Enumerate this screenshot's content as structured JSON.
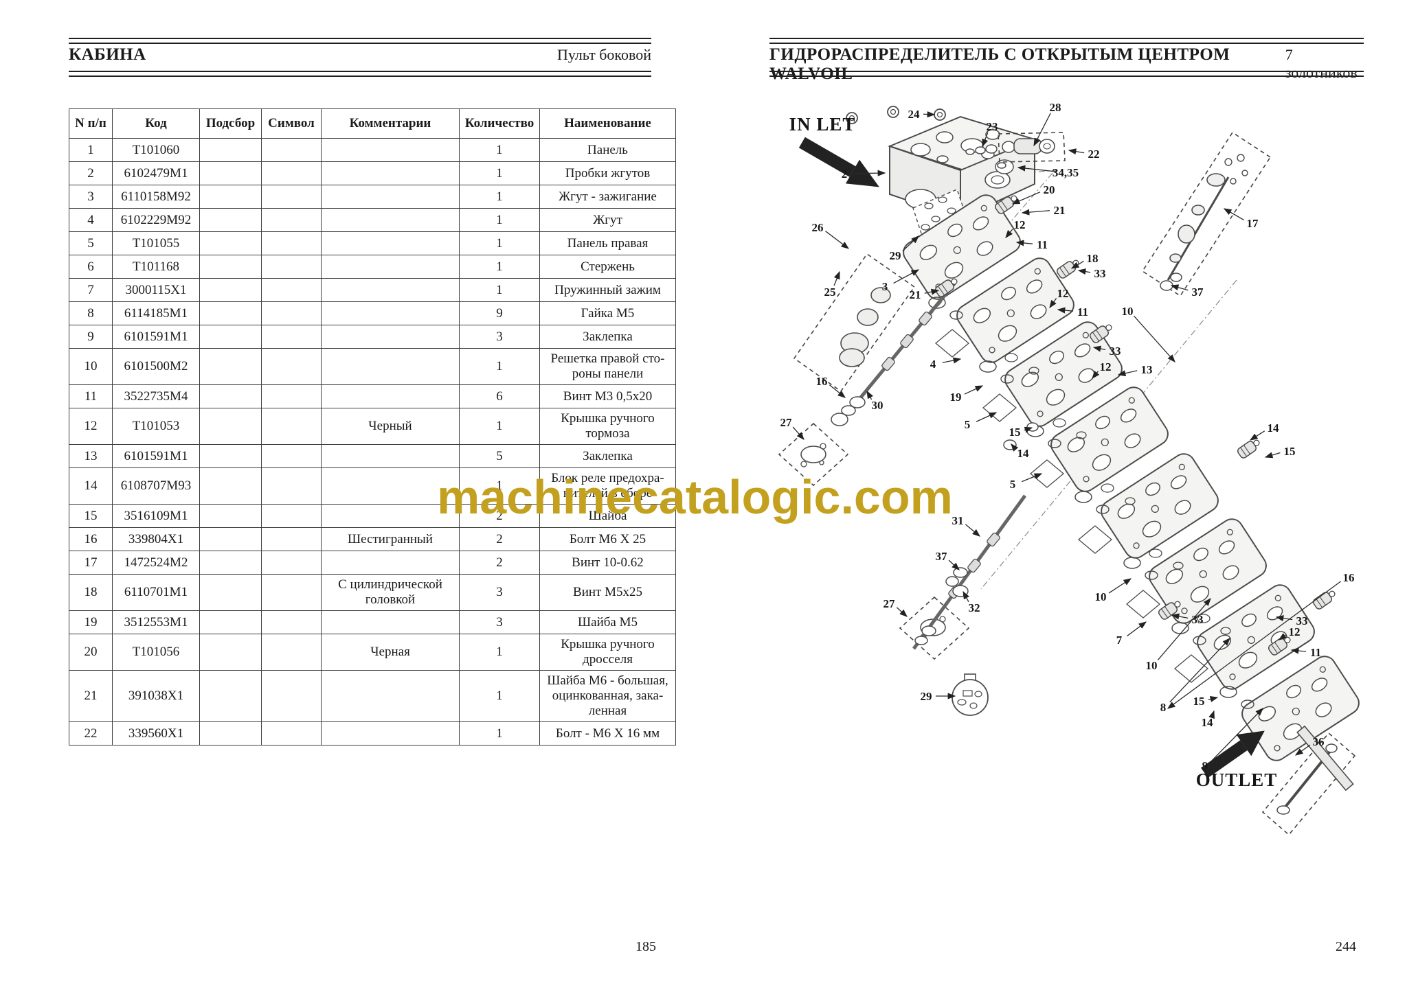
{
  "watermark": {
    "text": "machinecatalogic.com",
    "color": "#C3A01E"
  },
  "left_page": {
    "title": "КАБИНА",
    "subtitle": "Пульт боковой",
    "page_number": "185",
    "table": {
      "headers": [
        "N п/п",
        "Код",
        "Подсбор",
        "Символ",
        "Комментарии",
        "Количество",
        "Наименование"
      ],
      "rows": [
        [
          "1",
          "T101060",
          "",
          "",
          "",
          "1",
          "Панель"
        ],
        [
          "2",
          "6102479M1",
          "",
          "",
          "",
          "1",
          "Пробки жгутов"
        ],
        [
          "3",
          "6110158M92",
          "",
          "",
          "",
          "1",
          "Жгут - зажигание"
        ],
        [
          "4",
          "6102229M92",
          "",
          "",
          "",
          "1",
          "Жгут"
        ],
        [
          "5",
          "T101055",
          "",
          "",
          "",
          "1",
          "Панель правая"
        ],
        [
          "6",
          "T101168",
          "",
          "",
          "",
          "1",
          "Стержень"
        ],
        [
          "7",
          "3000115X1",
          "",
          "",
          "",
          "1",
          "Пружинный зажим"
        ],
        [
          "8",
          "6114185M1",
          "",
          "",
          "",
          "9",
          "Гайка М5"
        ],
        [
          "9",
          "6101591M1",
          "",
          "",
          "",
          "3",
          "Заклепка"
        ],
        [
          "10",
          "6101500M2",
          "",
          "",
          "",
          "1",
          "Решетка правой сто-\nроны панели"
        ],
        [
          "11",
          "3522735M4",
          "",
          "",
          "",
          "6",
          "Винт М3 0,5х20"
        ],
        [
          "12",
          "T101053",
          "",
          "",
          "Черный",
          "1",
          "Крышка ручного\nтормоза"
        ],
        [
          "13",
          "6101591M1",
          "",
          "",
          "",
          "5",
          "Заклепка"
        ],
        [
          "14",
          "6108707M93",
          "",
          "",
          "",
          "1",
          "Блок реле предохра-\nнителей в сборе"
        ],
        [
          "15",
          "3516109M1",
          "",
          "",
          "",
          "2",
          "Шайба"
        ],
        [
          "16",
          "339804X1",
          "",
          "",
          "Шестигранный",
          "2",
          "Болт М6 Х 25"
        ],
        [
          "17",
          "1472524M2",
          "",
          "",
          "",
          "2",
          "Винт 10-0.62"
        ],
        [
          "18",
          "6110701M1",
          "",
          "",
          "С цилиндрической\nголовкой",
          "3",
          "Винт М5х25"
        ],
        [
          "19",
          "3512553M1",
          "",
          "",
          "",
          "3",
          "Шайба М5"
        ],
        [
          "20",
          "T101056",
          "",
          "",
          "Черная",
          "1",
          "Крышка ручного\nдросселя"
        ],
        [
          "21",
          "391038X1",
          "",
          "",
          "",
          "1",
          "Шайба М6 - большая,\nоцинкованная, зака-\nленная"
        ],
        [
          "22",
          "339560X1",
          "",
          "",
          "",
          "1",
          "Болт - М6 Х 16 мм"
        ]
      ]
    }
  },
  "right_page": {
    "title": "ГИДРОРАСПРЕДЕЛИТЕЛЬ С ОТКРЫТЫМ ЦЕНТРОМ WALVOIL",
    "subtitle": "7 золотников",
    "page_number": "244",
    "diagram": {
      "inlet_label": "IN LET",
      "outlet_label": "OUTLET",
      "callouts": [
        [
          "24",
          1330,
          166,
          1360,
          167
        ],
        [
          "28",
          1536,
          156,
          1505,
          212
        ],
        [
          "23",
          1444,
          184,
          1430,
          213
        ],
        [
          "22",
          1592,
          224,
          1556,
          219
        ],
        [
          "34,35",
          1551,
          251,
          1482,
          244
        ],
        [
          "2",
          1229,
          253,
          1288,
          252
        ],
        [
          "20",
          1527,
          276,
          1474,
          297
        ],
        [
          "21",
          1542,
          306,
          1488,
          310
        ],
        [
          "26",
          1190,
          331,
          1235,
          362
        ],
        [
          "12",
          1484,
          327,
          1464,
          346
        ],
        [
          "11",
          1517,
          356,
          1480,
          353
        ],
        [
          "29",
          1303,
          372,
          1337,
          344
        ],
        [
          "18",
          1590,
          376,
          1560,
          391
        ],
        [
          "3",
          1288,
          417,
          1337,
          393
        ],
        [
          "25",
          1208,
          425,
          1222,
          396
        ],
        [
          "21",
          1332,
          429,
          1366,
          423
        ],
        [
          "12",
          1547,
          427,
          1528,
          448
        ],
        [
          "11",
          1576,
          454,
          1540,
          451
        ],
        [
          "17",
          1823,
          325,
          1782,
          304
        ],
        [
          "33",
          1601,
          398,
          1570,
          394
        ],
        [
          "37",
          1743,
          425,
          1705,
          416
        ],
        [
          "10",
          1641,
          453,
          1710,
          527
        ],
        [
          "13",
          1669,
          538,
          1628,
          546
        ],
        [
          "33",
          1623,
          511,
          1592,
          506
        ],
        [
          "12",
          1609,
          534,
          1590,
          551
        ],
        [
          "16",
          1196,
          555,
          1230,
          579
        ],
        [
          "30",
          1277,
          590,
          1262,
          570
        ],
        [
          "27",
          1144,
          615,
          1170,
          640
        ],
        [
          "4",
          1358,
          530,
          1398,
          523
        ],
        [
          "19",
          1391,
          578,
          1430,
          562
        ],
        [
          "5",
          1408,
          618,
          1450,
          601
        ],
        [
          "15",
          1477,
          629,
          1502,
          623
        ],
        [
          "14",
          1489,
          660,
          1472,
          647
        ],
        [
          "14",
          1853,
          623,
          1820,
          641
        ],
        [
          "15",
          1877,
          657,
          1842,
          666
        ],
        [
          "5",
          1474,
          705,
          1516,
          690
        ],
        [
          "31",
          1394,
          758,
          1426,
          781
        ],
        [
          "37",
          1370,
          810,
          1396,
          830
        ],
        [
          "32",
          1418,
          885,
          1402,
          862
        ],
        [
          "27",
          1294,
          879,
          1320,
          898
        ],
        [
          "10",
          1602,
          869,
          1646,
          843
        ],
        [
          "33",
          1743,
          902,
          1706,
          896
        ],
        [
          "7",
          1629,
          932,
          1668,
          906
        ],
        [
          "10",
          1676,
          969,
          1762,
          872
        ],
        [
          "8",
          1693,
          1030,
          1790,
          930
        ],
        [
          "15",
          1745,
          1021,
          1772,
          1016
        ],
        [
          "14",
          1757,
          1052,
          1767,
          1036
        ],
        [
          "16",
          1963,
          841,
          1700,
          1032
        ],
        [
          "33",
          1895,
          904,
          1858,
          899
        ],
        [
          "12",
          1884,
          920,
          1862,
          932
        ],
        [
          "11",
          1915,
          950,
          1880,
          947
        ],
        [
          "9",
          1754,
          1115,
          1838,
          1032
        ],
        [
          "36",
          1919,
          1080,
          1886,
          1100
        ],
        [
          "29",
          1348,
          1014,
          1390,
          1014
        ]
      ]
    }
  }
}
